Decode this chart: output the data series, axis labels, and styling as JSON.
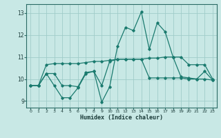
{
  "title": "",
  "xlabel": "Humidex (Indice chaleur)",
  "x_values": [
    0,
    1,
    2,
    3,
    4,
    5,
    6,
    7,
    8,
    9,
    10,
    11,
    12,
    13,
    14,
    15,
    16,
    17,
    18,
    19,
    20,
    21,
    22,
    23
  ],
  "line_upper": [
    9.7,
    9.7,
    10.65,
    10.7,
    10.7,
    10.7,
    10.7,
    10.75,
    10.8,
    10.8,
    10.85,
    10.9,
    10.9,
    10.9,
    10.9,
    10.95,
    10.95,
    11.0,
    11.0,
    11.0,
    10.65,
    10.65,
    10.65,
    10.0
  ],
  "line_volatile": [
    9.7,
    9.7,
    10.25,
    9.7,
    9.15,
    9.15,
    9.6,
    10.25,
    10.35,
    8.95,
    9.65,
    11.5,
    12.35,
    12.2,
    13.05,
    11.35,
    12.55,
    12.15,
    11.0,
    10.1,
    10.05,
    10.0,
    10.35,
    9.95
  ],
  "line_lower": [
    9.7,
    9.7,
    10.25,
    10.25,
    9.7,
    9.7,
    9.65,
    10.3,
    10.35,
    9.7,
    10.8,
    10.9,
    10.9,
    10.9,
    10.9,
    10.05,
    10.05,
    10.05,
    10.05,
    10.05,
    10.0,
    10.0,
    10.0,
    9.95
  ],
  "line_color": "#1a7a6e",
  "bg_color": "#c8e8e5",
  "grid_color": "#a0ccc9",
  "ylim": [
    8.7,
    13.4
  ],
  "xlim": [
    -0.5,
    23.5
  ],
  "yticks": [
    9,
    10,
    11,
    12,
    13
  ],
  "xticks": [
    0,
    1,
    2,
    3,
    4,
    5,
    6,
    7,
    8,
    9,
    10,
    11,
    12,
    13,
    14,
    15,
    16,
    17,
    18,
    19,
    20,
    21,
    22,
    23
  ]
}
